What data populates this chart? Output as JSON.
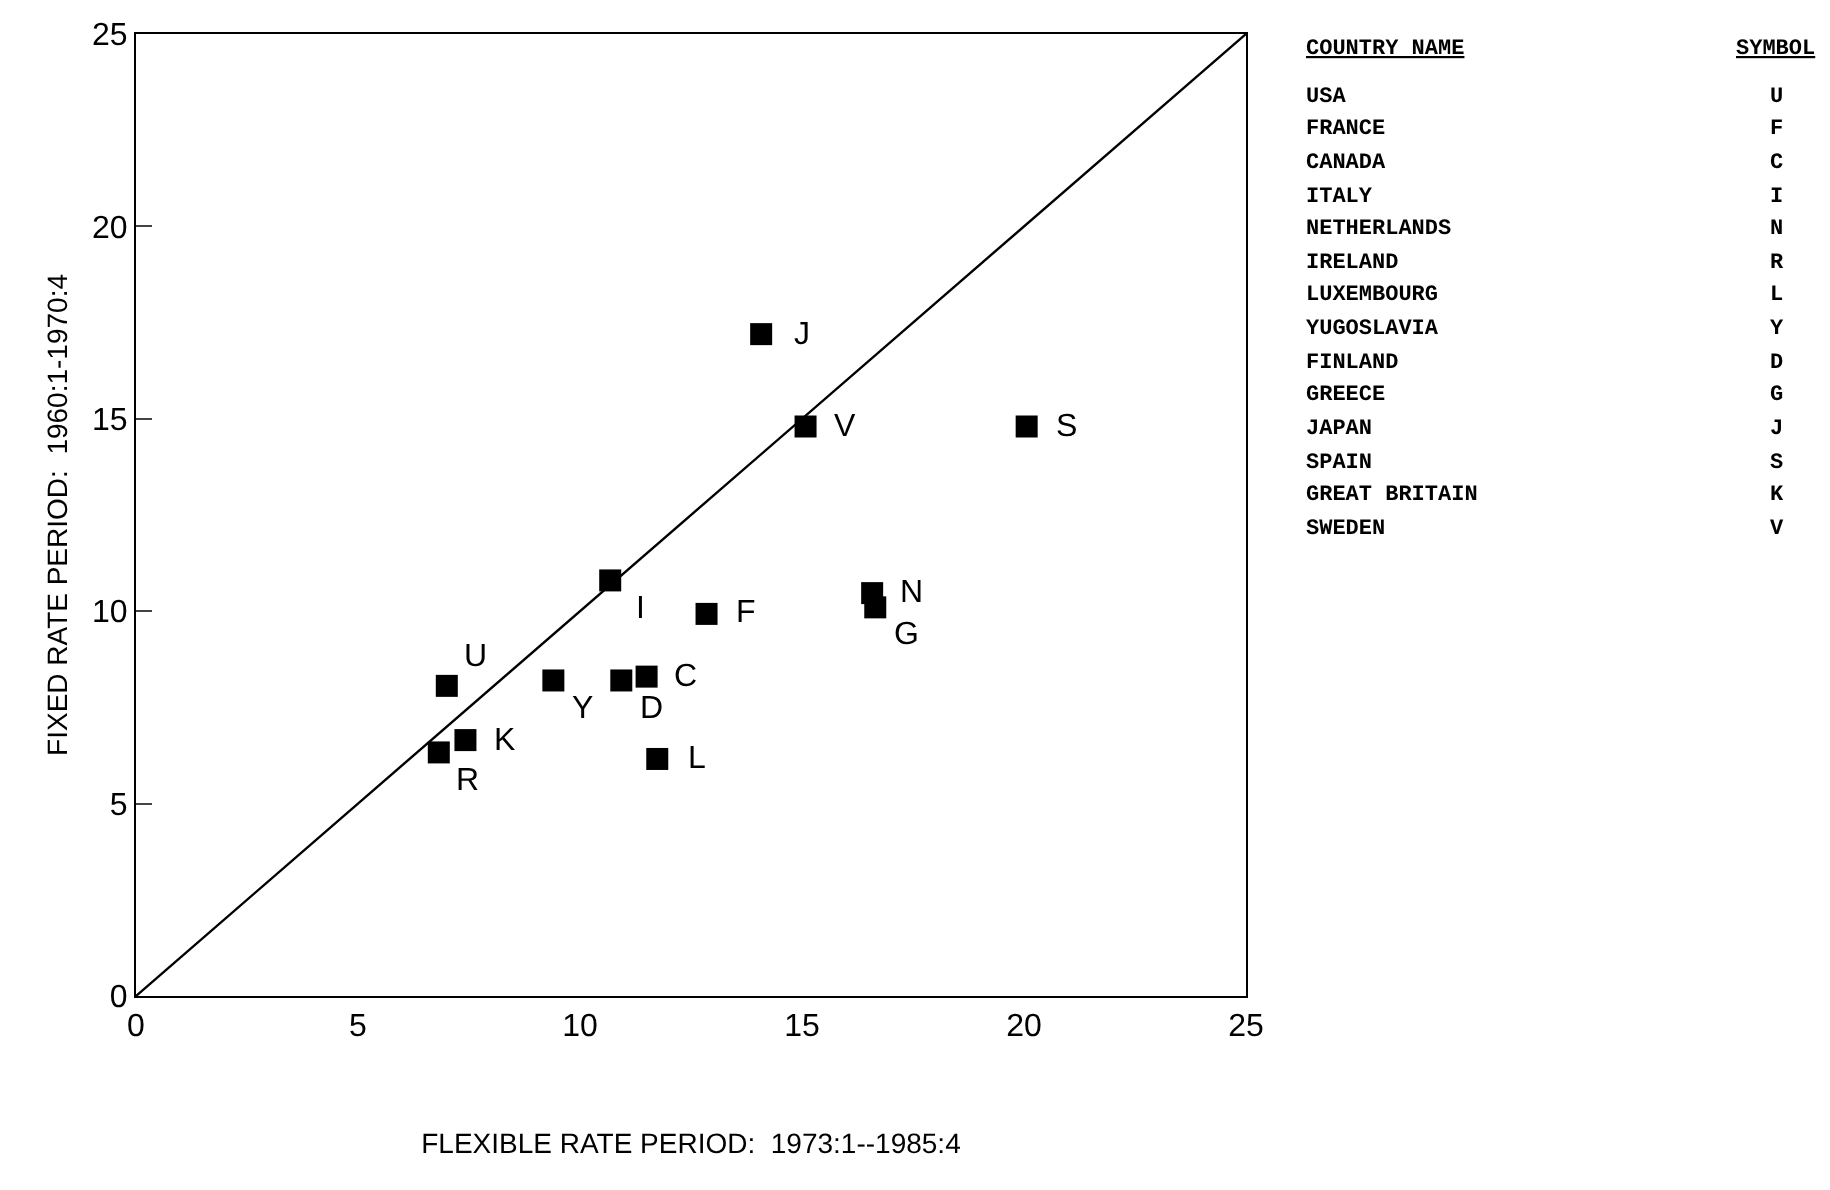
{
  "chart_data": {
    "type": "scatter",
    "xlabel": "FLEXIBLE RATE PERIOD:  1973:1--1985:4",
    "ylabel": "FIXED RATE PERIOD:  1960:1-1970:4",
    "x": [
      7.0,
      12.85,
      11.5,
      10.68,
      16.58,
      6.82,
      11.74,
      9.4,
      10.93,
      16.65,
      14.08,
      20.06,
      7.42,
      15.08
    ],
    "series": [
      {
        "color": "#000000",
        "marker": "square",
        "values": [
          8.06,
          9.93,
          8.3,
          10.8,
          10.47,
          6.33,
          6.16,
          8.2,
          8.2,
          10.1,
          17.2,
          14.8,
          6.65,
          14.8
        ]
      },
      {
        "type": "line",
        "color": "#000000",
        "line_style": "solid",
        "marker": "none",
        "x": [
          0,
          25
        ],
        "values": [
          0,
          25
        ]
      }
    ],
    "annotations": [
      {
        "text": "U",
        "x": 7.0,
        "y": 8.06
      },
      {
        "text": "F",
        "x": 12.85,
        "y": 9.93
      },
      {
        "text": "C",
        "x": 11.5,
        "y": 8.3
      },
      {
        "text": "I",
        "x": 10.68,
        "y": 10.8
      },
      {
        "text": "N",
        "x": 16.58,
        "y": 10.47
      },
      {
        "text": "R",
        "x": 6.82,
        "y": 6.33
      },
      {
        "text": "L",
        "x": 11.74,
        "y": 6.16
      },
      {
        "text": "Y",
        "x": 9.4,
        "y": 8.2
      },
      {
        "text": "D",
        "x": 10.93,
        "y": 8.2
      },
      {
        "text": "G",
        "x": 16.65,
        "y": 10.1
      },
      {
        "text": "J",
        "x": 14.08,
        "y": 17.2
      },
      {
        "text": "S",
        "x": 20.06,
        "y": 14.8
      },
      {
        "text": "K",
        "x": 7.42,
        "y": 6.65
      },
      {
        "text": "V",
        "x": 15.08,
        "y": 14.8
      },
      "COUNTRY NAME",
      "SYMBOL",
      "USA",
      "U",
      "FRANCE",
      "F",
      "CANADA",
      "C",
      "ITALY",
      "I",
      "NETHERLANDS",
      "N",
      "IRELAND",
      "R",
      "LUXEMBOURG",
      "L",
      "YUGOSLAVIA",
      "Y",
      "FINLAND",
      "D",
      "GREECE",
      "G",
      "JAPAN",
      "J",
      "SPAIN",
      "S",
      "GREAT BRITAIN",
      "K",
      "SWEDEN",
      "V"
    ],
    "xlim": [
      0,
      25
    ],
    "xticks": [
      0,
      5,
      10,
      15,
      20,
      25
    ],
    "ylim": [
      0,
      25
    ],
    "yticks": [
      0,
      5,
      10,
      15,
      20,
      25
    ]
  }
}
